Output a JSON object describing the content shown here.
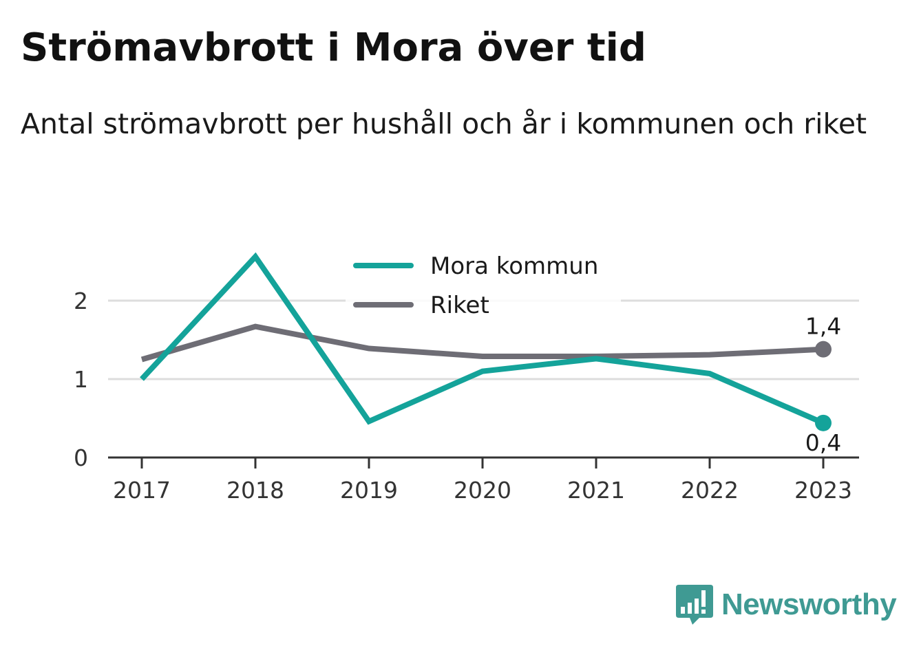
{
  "title": "Strömavbrott i Mora över tid",
  "subtitle": "Antal strömavbrott per hushåll och år i kommunen och riket",
  "brand": {
    "name": "Newsworthy",
    "logo_icon": "newsworthy-chart-bubble-icon"
  },
  "chart_data": {
    "type": "line",
    "x": [
      "2017",
      "2018",
      "2019",
      "2020",
      "2021",
      "2022",
      "2023"
    ],
    "series": [
      {
        "name": "Mora kommun",
        "color": "#14a39a",
        "values": [
          1.0,
          2.56,
          0.46,
          1.1,
          1.26,
          1.07,
          0.44
        ],
        "end_label": "0,4"
      },
      {
        "name": "Riket",
        "color": "#6e6d75",
        "values": [
          1.25,
          1.67,
          1.39,
          1.29,
          1.29,
          1.31,
          1.38
        ],
        "end_label": "1,4"
      }
    ],
    "yticks": [
      "0",
      "1",
      "2"
    ],
    "ylim": [
      0,
      2.6
    ],
    "grid": true,
    "legend": "top-center",
    "colors": {
      "grid": "#dddddd",
      "axis": "#333333",
      "text": "#333333"
    }
  }
}
